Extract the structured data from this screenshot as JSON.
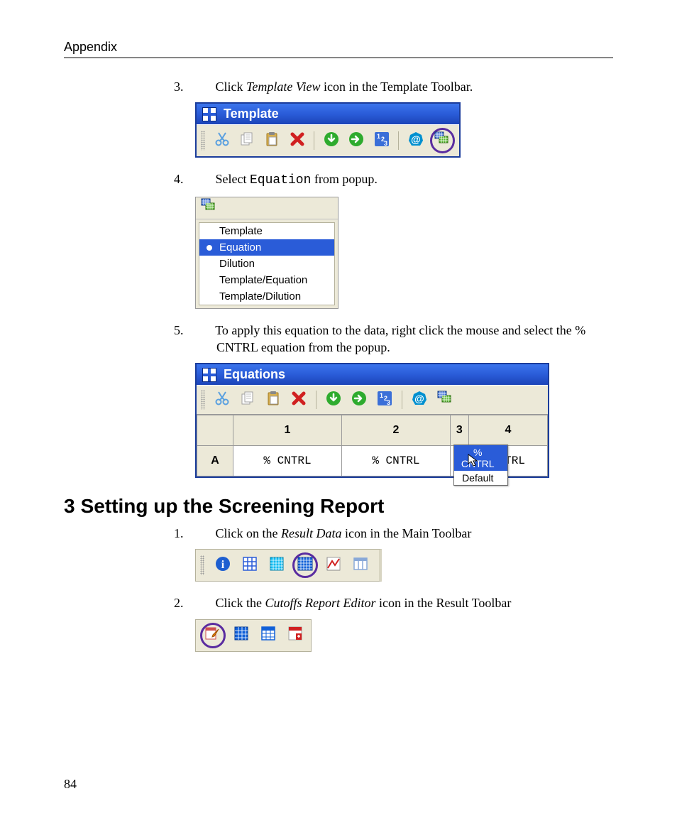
{
  "page": {
    "running_head": "Appendix",
    "page_number": "84"
  },
  "steps_top": {
    "s3": {
      "num": "3.",
      "pre": "Click ",
      "em": "Template View",
      "post": " icon in the Template Toolbar."
    },
    "s4": {
      "num": "4.",
      "pre": "Select ",
      "code": "Equation",
      "post": " from popup."
    },
    "s5": {
      "num": "5.",
      "text": "To apply this equation to the data, right click the mouse and select the % CNTRL equation from the popup."
    }
  },
  "template_window": {
    "title": "Template",
    "toolbar_icons": [
      "cut-icon",
      "copy-icon",
      "paste-icon",
      "delete-icon",
      "down-arrow-icon",
      "right-arrow-icon",
      "numbers-icon",
      "at-icon",
      "template-view-icon"
    ],
    "circled_index": 8,
    "colors": {
      "titlebar_top": "#3b74ec",
      "titlebar_bottom": "#1c44b8",
      "face": "#ece9d8",
      "circle": "#5a2ca0"
    }
  },
  "popup_menu": {
    "header_icon": "template-view-icon",
    "items": [
      "Template",
      "Equation",
      "Dilution",
      "Template/Equation",
      "Template/Dilution"
    ],
    "selected_index": 1
  },
  "equations_window": {
    "title": "Equations",
    "toolbar_icons": [
      "cut-icon",
      "copy-icon",
      "paste-icon",
      "delete-icon",
      "down-arrow-icon",
      "right-arrow-icon",
      "numbers-icon",
      "at-icon",
      "template-view-icon"
    ],
    "columns": [
      "1",
      "2",
      "3",
      "4"
    ],
    "row_header": "A",
    "cells": [
      "% CNTRL",
      "% CNTRL",
      "",
      "CNTRL"
    ],
    "context_menu": {
      "items": [
        "% CNTRL",
        "Default"
      ],
      "highlight_index": 0
    },
    "context_menu_column_index": 2
  },
  "section_heading": {
    "num": "3",
    "text": "Setting up the Screening Report"
  },
  "steps_bottom": {
    "s1": {
      "num": "1.",
      "pre": "Click on the ",
      "em": "Result Data",
      "post": " icon in the Main Toolbar"
    },
    "s2": {
      "num": "2.",
      "pre": "Click the ",
      "em": "Cutoffs Report Editor",
      "post": " icon in the Result Toolbar"
    }
  },
  "main_toolbar": {
    "icons": [
      "info-icon",
      "grid-icon",
      "grid-fine-icon",
      "result-data-icon",
      "chart-icon",
      "columns-icon"
    ],
    "circled_index": 3
  },
  "result_toolbar": {
    "icons": [
      "cutoffs-editor-icon",
      "grid-blue-icon",
      "grid-blue2-icon",
      "report-red-icon"
    ],
    "circled_index": 0
  },
  "icon_colors": {
    "cut": "#5aa0e0",
    "delete": "#d02020",
    "down": "#2eab2e",
    "right": "#2eab2e",
    "numbers_bg": "#3a6fd8",
    "at": "#0090d0",
    "template_view1": "#3a6fd8",
    "template_view2": "#5ab82e",
    "info": "#1e5fd0",
    "grid": "#2a5cd8",
    "grid_fine": "#00b8f0",
    "result_data": "#1060d8",
    "chart_line": "#d02020",
    "columns": "#88a8d8",
    "cutoffs_pencil": "#e08000",
    "report_red": "#d02020"
  }
}
